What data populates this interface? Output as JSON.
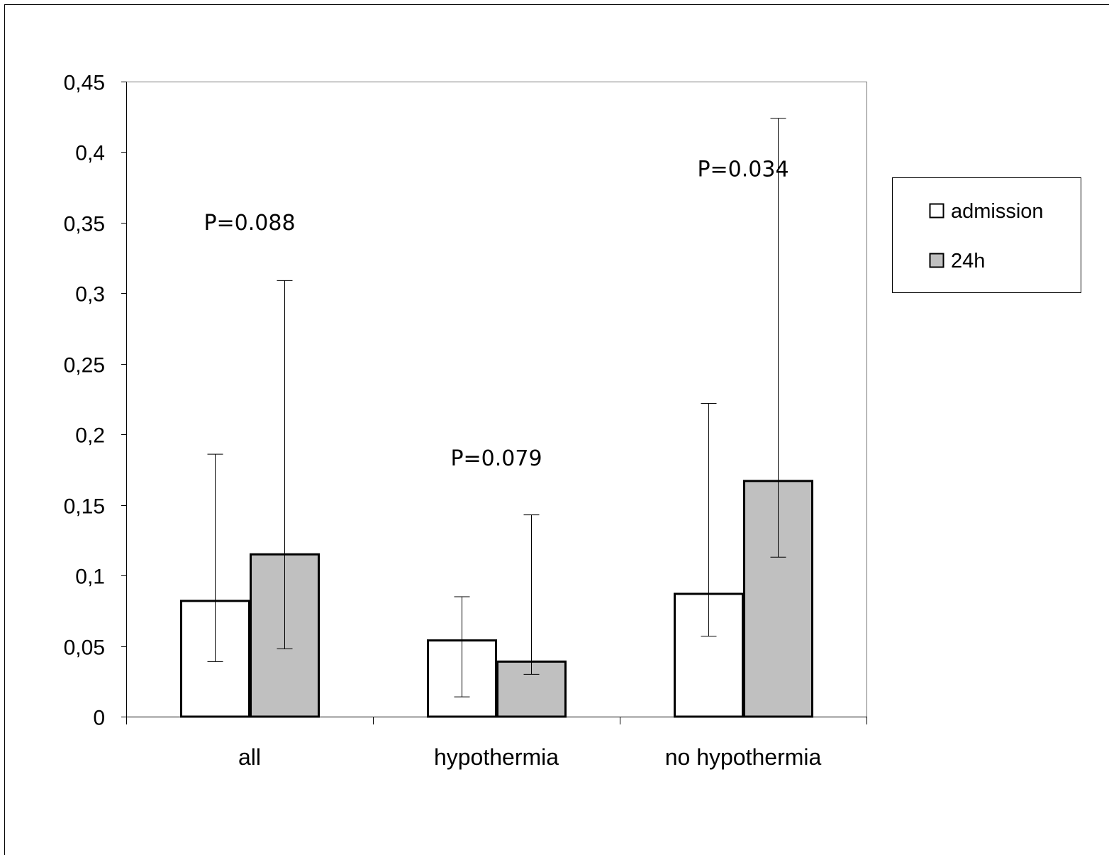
{
  "chart_data": {
    "type": "bar",
    "title": "",
    "xlabel": "",
    "ylabel": "",
    "ylim": [
      0,
      0.45
    ],
    "yticks": [
      0,
      0.05,
      0.1,
      0.15,
      0.2,
      0.25,
      0.3,
      0.35,
      0.4,
      0.45
    ],
    "ytick_labels": [
      "0",
      "0,05",
      "0,1",
      "0,15",
      "0,2",
      "0,25",
      "0,3",
      "0,35",
      "0,4",
      "0,45"
    ],
    "categories": [
      "all",
      "hypothermia",
      "no hypothermia"
    ],
    "series": [
      {
        "name": "admission",
        "color": "#ffffff",
        "values": [
          0.082,
          0.054,
          0.087
        ],
        "error_low": [
          0.039,
          0.014,
          0.057
        ],
        "error_high": [
          0.186,
          0.085,
          0.222
        ]
      },
      {
        "name": "24h",
        "color": "#c0c0c0",
        "values": [
          0.115,
          0.039,
          0.167
        ],
        "error_low": [
          0.048,
          0.03,
          0.113
        ],
        "error_high": [
          0.309,
          0.143,
          0.424
        ]
      }
    ],
    "annotations": [
      {
        "category": "all",
        "text": "P=0.088",
        "y": 0.35
      },
      {
        "category": "hypothermia",
        "text": "P=0.079",
        "y": 0.183
      },
      {
        "category": "no hypothermia",
        "text": "P=0.034",
        "y": 0.388
      }
    ],
    "grid": false,
    "legend_position": "right"
  }
}
